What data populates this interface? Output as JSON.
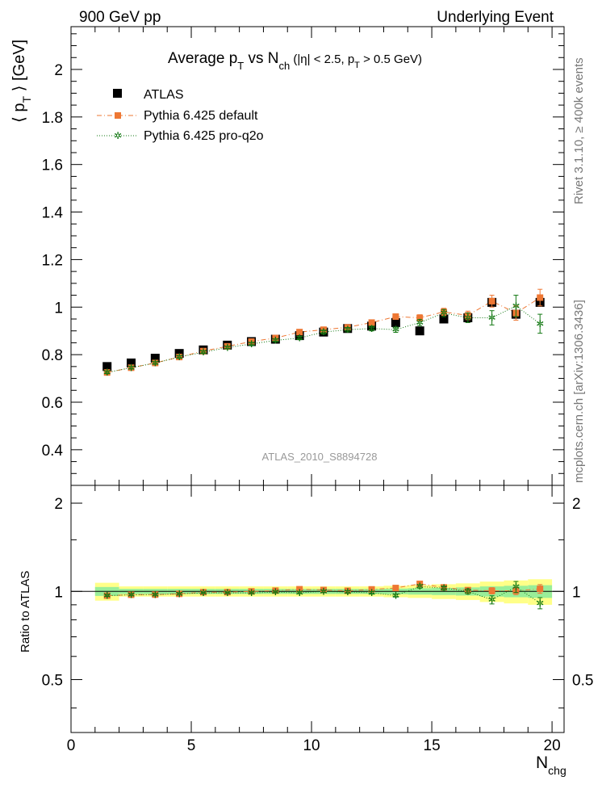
{
  "header": {
    "left": "900 GeV pp",
    "right": "Underlying Event"
  },
  "side_text": {
    "rivet": "Rivet 3.1.10, ≥ 400k events",
    "mcplots": "mcplots.cern.ch [arXiv:1306.3436]"
  },
  "main_title": {
    "prefix": "Average p",
    "sub_t": "T",
    "vs": " vs N",
    "sub_ch": "ch",
    "cuts": " (|η| < 2.5, p",
    "cuts_sub": "T",
    "cuts_end": " > 0.5 GeV)"
  },
  "analysis_tag": "ATLAS_2010_S8894728",
  "ylabel_top": {
    "open": "⟨ p",
    "sub": "T",
    "close": " ⟩ [GeV]"
  },
  "ylabel_bottom": "Ratio to ATLAS",
  "xlabel": {
    "main": "N",
    "sub": "chg"
  },
  "legend": {
    "atlas": "ATLAS",
    "default": "Pythia 6.425 default",
    "proq2o": "Pythia 6.425 pro-q2o"
  },
  "colors": {
    "atlas": "#000000",
    "default": "#ee7733",
    "proq2o": "#117711",
    "band_inner": "#99ee99",
    "band_outer": "#ffff88"
  },
  "chart_data": [
    {
      "type": "scatter",
      "title": "Average pT vs Nch (|eta| < 2.5, pT > 0.5 GeV)",
      "xlabel": "Nchg",
      "ylabel": "<pT> [GeV]",
      "xlim": [
        0,
        20.5
      ],
      "ylim": [
        0.25,
        2.18
      ],
      "x_ticks": [
        0,
        5,
        10,
        15,
        20
      ],
      "y_ticks": [
        0.4,
        0.6,
        0.8,
        1,
        1.2,
        1.4,
        1.6,
        1.8,
        2
      ],
      "x": [
        1.5,
        2.5,
        3.5,
        4.5,
        5.5,
        6.5,
        7.5,
        8.5,
        9.5,
        10.5,
        11.5,
        12.5,
        13.5,
        14.5,
        15.5,
        16.5,
        17.5,
        18.5,
        19.5
      ],
      "series": [
        {
          "name": "ATLAS",
          "values": [
            0.75,
            0.765,
            0.785,
            0.805,
            0.82,
            0.84,
            0.855,
            0.865,
            0.88,
            0.895,
            0.91,
            0.92,
            0.935,
            0.9,
            0.95,
            0.955,
            1.02,
            0.97,
            1.02
          ],
          "errors": [
            0.008,
            0.008,
            0.008,
            0.008,
            0.008,
            0.008,
            0.008,
            0.008,
            0.009,
            0.009,
            0.01,
            0.011,
            0.012,
            0.014,
            0.016,
            0.02,
            0.03,
            0.03,
            0.04
          ]
        },
        {
          "name": "Pythia 6.425 default",
          "values": [
            0.725,
            0.745,
            0.765,
            0.79,
            0.815,
            0.835,
            0.855,
            0.87,
            0.895,
            0.905,
            0.915,
            0.935,
            0.96,
            0.955,
            0.98,
            0.965,
            1.025,
            0.975,
            1.04
          ],
          "errors": [
            0.005,
            0.005,
            0.005,
            0.005,
            0.005,
            0.005,
            0.006,
            0.006,
            0.007,
            0.008,
            0.009,
            0.01,
            0.011,
            0.013,
            0.015,
            0.018,
            0.025,
            0.03,
            0.035
          ]
        },
        {
          "name": "Pythia 6.425 pro-q2o",
          "values": [
            0.725,
            0.745,
            0.765,
            0.79,
            0.81,
            0.83,
            0.845,
            0.86,
            0.87,
            0.895,
            0.905,
            0.91,
            0.905,
            0.935,
            0.975,
            0.955,
            0.955,
            1.005,
            0.93
          ],
          "errors": [
            0.005,
            0.005,
            0.005,
            0.005,
            0.005,
            0.005,
            0.006,
            0.006,
            0.007,
            0.008,
            0.009,
            0.01,
            0.011,
            0.013,
            0.015,
            0.02,
            0.03,
            0.045,
            0.04
          ]
        }
      ]
    },
    {
      "type": "scatter",
      "title": "Ratio to ATLAS",
      "xlabel": "Nchg",
      "ylabel": "Ratio to ATLAS",
      "xlim": [
        0,
        20.5
      ],
      "ylim": [
        0.33,
        2.3
      ],
      "y_scale": "log",
      "y_ticks": [
        0.5,
        1,
        2
      ],
      "x": [
        1.5,
        2.5,
        3.5,
        4.5,
        5.5,
        6.5,
        7.5,
        8.5,
        9.5,
        10.5,
        11.5,
        12.5,
        13.5,
        14.5,
        15.5,
        16.5,
        17.5,
        18.5,
        19.5
      ],
      "bin_edges": [
        1,
        2,
        3,
        4,
        5,
        6,
        7,
        8,
        9,
        10,
        11,
        12,
        13,
        14,
        15,
        16,
        17,
        18,
        19,
        20
      ],
      "band_inner": [
        0.035,
        0.02,
        0.02,
        0.02,
        0.02,
        0.02,
        0.02,
        0.02,
        0.02,
        0.02,
        0.02,
        0.02,
        0.022,
        0.025,
        0.028,
        0.032,
        0.04,
        0.045,
        0.05
      ],
      "band_outer": [
        0.07,
        0.04,
        0.04,
        0.04,
        0.04,
        0.04,
        0.04,
        0.04,
        0.04,
        0.04,
        0.04,
        0.04,
        0.045,
        0.05,
        0.058,
        0.065,
        0.08,
        0.09,
        0.1
      ],
      "series": [
        {
          "name": "Pythia 6.425 default",
          "values": [
            0.967,
            0.974,
            0.975,
            0.981,
            0.994,
            0.994,
            1.0,
            1.006,
            1.017,
            1.011,
            1.005,
            1.016,
            1.027,
            1.061,
            1.032,
            1.01,
            1.005,
            1.005,
            1.02
          ],
          "errors": [
            0.005,
            0.005,
            0.005,
            0.005,
            0.005,
            0.005,
            0.006,
            0.006,
            0.007,
            0.008,
            0.009,
            0.01,
            0.011,
            0.013,
            0.015,
            0.018,
            0.025,
            0.03,
            0.035
          ]
        },
        {
          "name": "Pythia 6.425 pro-q2o",
          "values": [
            0.967,
            0.974,
            0.975,
            0.981,
            0.988,
            0.988,
            0.988,
            0.994,
            0.989,
            1.0,
            0.995,
            0.989,
            0.968,
            1.039,
            1.026,
            1.0,
            0.936,
            1.036,
            0.912
          ],
          "errors": [
            0.005,
            0.005,
            0.005,
            0.005,
            0.005,
            0.005,
            0.006,
            0.006,
            0.007,
            0.008,
            0.009,
            0.01,
            0.011,
            0.013,
            0.015,
            0.02,
            0.03,
            0.045,
            0.04
          ]
        }
      ]
    }
  ]
}
